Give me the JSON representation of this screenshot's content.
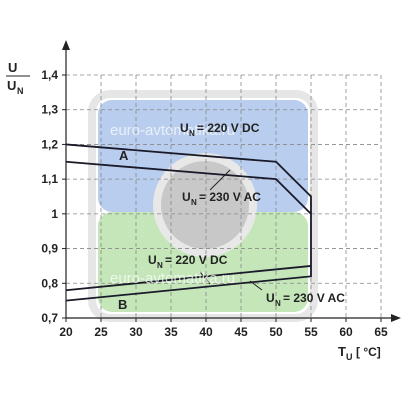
{
  "chart_data": {
    "type": "line",
    "y_label": {
      "numerator": "U",
      "denominator": "U",
      "denominator_sub": "N"
    },
    "x_label": {
      "main": "T",
      "sub": "U",
      "unit": "[ °C]"
    },
    "watermark": "euro-avtomatika.ru",
    "xlim": [
      20,
      65
    ],
    "xticks": [
      20,
      25,
      30,
      35,
      40,
      45,
      50,
      55,
      60,
      65
    ],
    "ylim": [
      0.7,
      1.4
    ],
    "yticks": [
      {
        "value": 0.7,
        "label": "0,7"
      },
      {
        "value": 0.8,
        "label": "0,8"
      },
      {
        "value": 0.9,
        "label": "0,9"
      },
      1,
      {
        "value": 1.1,
        "label": "1,1"
      },
      {
        "value": 1.2,
        "label": "1,2"
      },
      {
        "value": 1.3,
        "label": "1,3"
      },
      {
        "value": 1.4,
        "label": "1,4"
      }
    ],
    "grid": true,
    "series": [
      {
        "color": "#1a1a2a",
        "x": [
          20,
          50,
          55,
          55
        ],
        "values": [
          1.2,
          1.15,
          1.05,
          1.0
        ]
      },
      {
        "color": "#1a1a2a",
        "x": [
          20,
          50,
          55
        ],
        "values": [
          1.15,
          1.1,
          1.0
        ]
      },
      {
        "color": "#1a1a2a",
        "x": [
          20,
          55
        ],
        "values": [
          0.78,
          0.85
        ]
      },
      {
        "color": "#1a1a2a",
        "x": [
          20,
          55,
          55
        ],
        "values": [
          0.75,
          0.82,
          1.0
        ]
      }
    ],
    "annotations": [
      {
        "text": "A"
      },
      {
        "text": "B"
      },
      {
        "main": "U",
        "sub": "N",
        "rest": "= 220 V DC"
      },
      {
        "main": "U",
        "sub": "N",
        "rest": "= 230 V AC"
      },
      {
        "main": "U",
        "sub": "N",
        "rest": "= 220 V DC"
      },
      {
        "main": "U",
        "sub": "N",
        "rest": "= 230 V AC"
      }
    ]
  }
}
